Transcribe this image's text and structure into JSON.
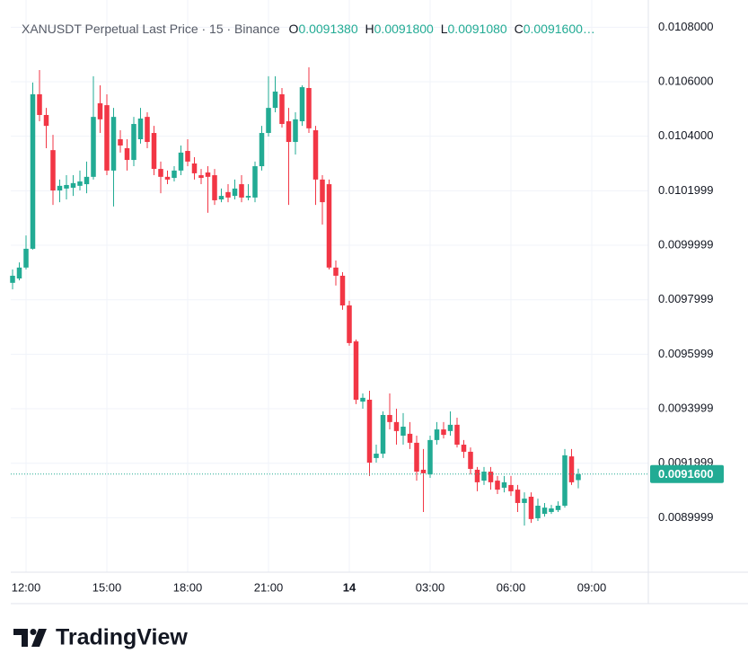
{
  "chart_data": {
    "type": "candlestick",
    "header": {
      "title": "XANUSDT Perpetual Last Price · 15 · Binance",
      "o_label": "O",
      "o_value": "0.0091380",
      "h_label": "H",
      "h_value": "0.0091800",
      "l_label": "L",
      "l_value": "0.0091080",
      "c_label": "C",
      "c_value": "0.0091600…"
    },
    "categories": [
      null,
      null,
      "12:00",
      null,
      null,
      null,
      null,
      null,
      null,
      null,
      null,
      null,
      null,
      null,
      "15:00",
      null,
      null,
      null,
      null,
      null,
      null,
      null,
      null,
      null,
      null,
      null,
      "18:00",
      null,
      null,
      null,
      null,
      null,
      null,
      null,
      null,
      null,
      null,
      null,
      "21:00",
      null,
      null,
      null,
      null,
      null,
      null,
      null,
      null,
      null,
      null,
      null,
      "14",
      null,
      null,
      null,
      null,
      null,
      null,
      null,
      null,
      null,
      null,
      null,
      "03:00",
      null,
      null,
      null,
      null,
      null,
      null,
      null,
      null,
      null,
      null,
      null,
      "06:00",
      null,
      null,
      null,
      null,
      null,
      null,
      null,
      null,
      null,
      null,
      null,
      "09:00"
    ],
    "open": [
      0.009862,
      0.009878,
      0.009918,
      0.009987,
      0.010554,
      0.010478,
      0.010349,
      0.010201,
      0.010208,
      0.010211,
      0.010218,
      0.010224,
      0.010251,
      0.010521,
      0.010514,
      0.010274,
      0.010389,
      0.010356,
      0.010313,
      0.010389,
      0.010471,
      0.010412,
      0.01028,
      0.010251,
      0.010247,
      0.010274,
      0.010346,
      0.0103,
      0.010257,
      0.010267,
      0.010257,
      0.010168,
      0.010195,
      0.010181,
      0.010224,
      0.010175,
      0.010175,
      0.01029,
      0.010412,
      0.010504,
      0.010554,
      0.010455,
      0.010379,
      0.010455,
      0.010577,
      0.010422,
      0.010241,
      0.010224,
      0.009918,
      0.009888,
      0.009779,
      0.009647,
      0.009426,
      0.009433,
      0.009219,
      0.009235,
      0.009377,
      0.009351,
      0.009301,
      0.009308,
      0.009275,
      0.009176,
      0.009159,
      0.009285,
      0.009324,
      0.009318,
      0.009341,
      0.009268,
      0.009242,
      0.009176,
      0.009136,
      0.009169,
      0.009136,
      0.00911,
      0.00912,
      0.009103,
      0.009054,
      0.009077,
      0.008998,
      0.009014,
      0.009021,
      0.009028,
      0.009044,
      0.009225,
      0.009138,
      null,
      null
    ],
    "high": [
      0.009911,
      0.009937,
      0.010036,
      0.010597,
      0.010643,
      0.010504,
      0.010405,
      0.010241,
      0.010257,
      0.010257,
      0.010274,
      0.010307,
      0.01062,
      0.010587,
      0.010554,
      0.010504,
      0.010422,
      0.010389,
      0.010471,
      0.010504,
      0.010488,
      0.010438,
      0.010307,
      0.010274,
      0.01029,
      0.010366,
      0.010389,
      0.010323,
      0.01028,
      0.01029,
      0.01028,
      0.010208,
      0.010224,
      0.010241,
      0.010257,
      0.010224,
      0.010307,
      0.010438,
      0.01062,
      0.01062,
      0.010577,
      0.010504,
      0.010488,
      0.010587,
      0.010653,
      0.010438,
      0.010257,
      0.010241,
      0.009944,
      0.009901,
      0.009796,
      0.009654,
      0.009456,
      0.009466,
      0.009268,
      0.00939,
      0.009456,
      0.0094,
      0.009384,
      0.009351,
      0.009301,
      0.009252,
      0.009301,
      0.009351,
      0.009351,
      0.00939,
      0.009367,
      0.009285,
      0.009258,
      0.009186,
      0.009186,
      0.009186,
      0.009153,
      0.009153,
      0.009153,
      0.00912,
      0.009093,
      0.009093,
      0.00907,
      0.009054,
      0.009047,
      0.00906,
      0.009252,
      0.009252,
      0.00918,
      null,
      null
    ],
    "low": [
      0.009838,
      0.009871,
      0.009911,
      0.009984,
      0.010455,
      0.010356,
      0.010148,
      0.010158,
      0.010168,
      0.010181,
      0.010201,
      0.010191,
      0.010241,
      0.010412,
      0.010257,
      0.010142,
      0.01034,
      0.010274,
      0.01029,
      0.010373,
      0.010356,
      0.010257,
      0.010191,
      0.010224,
      0.010234,
      0.010257,
      0.01029,
      0.010241,
      0.010224,
      0.010119,
      0.010148,
      0.010158,
      0.010158,
      0.010168,
      0.010158,
      0.010165,
      0.010158,
      0.010274,
      0.010399,
      0.010488,
      0.010432,
      0.010148,
      0.010333,
      0.010438,
      0.010412,
      0.010148,
      0.010076,
      0.009911,
      0.009852,
      0.009763,
      0.009631,
      0.009417,
      0.0094,
      0.009153,
      0.009202,
      0.009219,
      0.009324,
      0.009268,
      0.009268,
      0.009252,
      0.009136,
      0.009021,
      0.009146,
      0.009268,
      0.009291,
      0.009301,
      0.009258,
      0.009219,
      0.009159,
      0.009097,
      0.00912,
      0.009103,
      0.009087,
      0.009093,
      0.00908,
      0.009021,
      0.008971,
      0.008981,
      0.008988,
      0.009004,
      0.009014,
      0.009021,
      0.009037,
      0.00912,
      0.009108,
      null,
      null
    ],
    "close": [
      0.009888,
      0.009918,
      0.009987,
      0.010554,
      0.010478,
      0.010438,
      0.010201,
      0.010218,
      0.010221,
      0.010228,
      0.010234,
      0.010251,
      0.010471,
      0.010462,
      0.010274,
      0.010471,
      0.010366,
      0.010313,
      0.010445,
      0.010465,
      0.010379,
      0.01028,
      0.010251,
      0.010241,
      0.010274,
      0.01034,
      0.010307,
      0.010264,
      0.010247,
      0.010251,
      0.010165,
      0.010181,
      0.010175,
      0.010208,
      0.010175,
      0.010181,
      0.01029,
      0.010412,
      0.010504,
      0.010564,
      0.010445,
      0.010379,
      0.010462,
      0.01058,
      0.010429,
      0.010241,
      0.010158,
      0.009918,
      0.009888,
      0.009779,
      0.009641,
      0.009433,
      0.00944,
      0.009202,
      0.009235,
      0.009377,
      0.009351,
      0.009318,
      0.009334,
      0.009275,
      0.009169,
      0.009163,
      0.009285,
      0.009324,
      0.009304,
      0.009341,
      0.009268,
      0.009242,
      0.009179,
      0.00913,
      0.009169,
      0.00913,
      0.009103,
      0.00913,
      0.009097,
      0.009054,
      0.00907,
      0.008995,
      0.009044,
      0.009037,
      0.009034,
      0.009044,
      0.009229,
      0.00913,
      0.00916,
      null,
      null
    ],
    "up_color": "#22ab94",
    "down_color": "#f23645",
    "ylim": [
      0.0088,
      0.0109
    ],
    "yticks": [
      {
        "value": 0.0108,
        "label": "0.0108000"
      },
      {
        "value": 0.0106,
        "label": "0.0106000"
      },
      {
        "value": 0.0104,
        "label": "0.0104000"
      },
      0.0101999,
      0.0099999,
      0.0097999,
      0.0095999,
      0.0093999,
      0.0091999,
      0.0089999
    ],
    "grid": true,
    "last_price": {
      "value": 0.00916,
      "label": "0.0091600"
    },
    "brand": "TradingView"
  }
}
